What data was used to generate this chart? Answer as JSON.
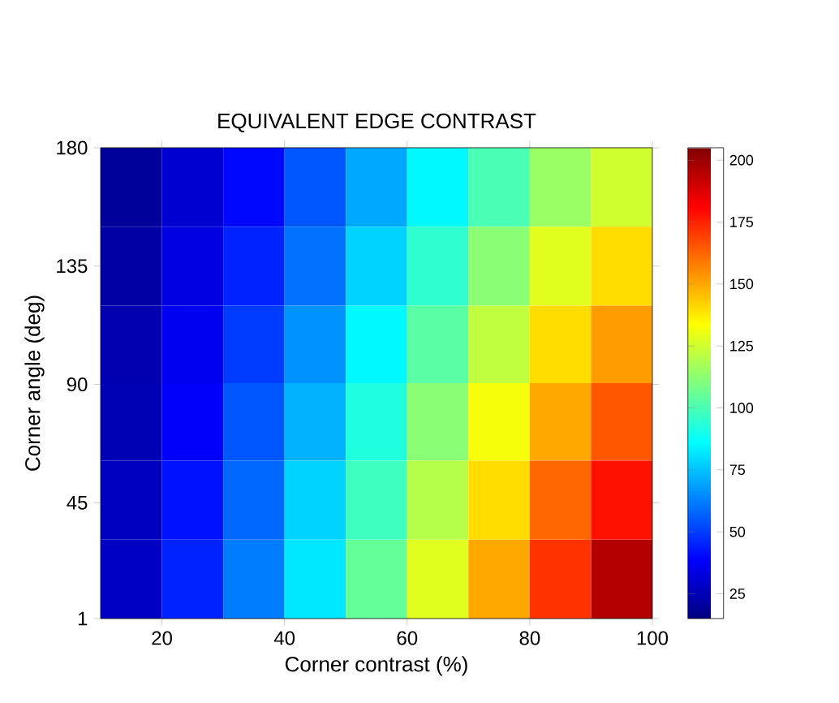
{
  "chart_data": {
    "type": "heatmap",
    "title": "EQUIVALENT EDGE CONTRAST",
    "xlabel": "Corner contrast (%)",
    "ylabel": "Corner angle (deg)",
    "x": [
      15,
      25,
      35,
      45,
      55,
      65,
      75,
      85,
      95
    ],
    "y": [
      165,
      135,
      105,
      76,
      46,
      16
    ],
    "cells": [
      [
        20,
        30,
        40,
        55,
        70,
        85,
        100,
        115,
        125
      ],
      [
        22,
        33,
        45,
        60,
        78,
        95,
        112,
        128,
        140
      ],
      [
        24,
        36,
        50,
        66,
        85,
        103,
        122,
        140,
        152
      ],
      [
        25,
        38,
        55,
        72,
        92,
        112,
        132,
        150,
        165
      ],
      [
        27,
        42,
        58,
        78,
        98,
        120,
        140,
        162,
        178
      ],
      [
        28,
        45,
        62,
        82,
        105,
        128,
        150,
        172,
        195
      ]
    ],
    "xlim": [
      10,
      100
    ],
    "ylim": [
      1,
      180
    ],
    "xticks": [
      20,
      40,
      60,
      80,
      100
    ],
    "yticks": [
      1,
      45,
      90,
      135,
      180
    ],
    "clim": [
      15,
      205
    ],
    "cticks": [
      25,
      50,
      75,
      100,
      125,
      150,
      175,
      200
    ]
  }
}
